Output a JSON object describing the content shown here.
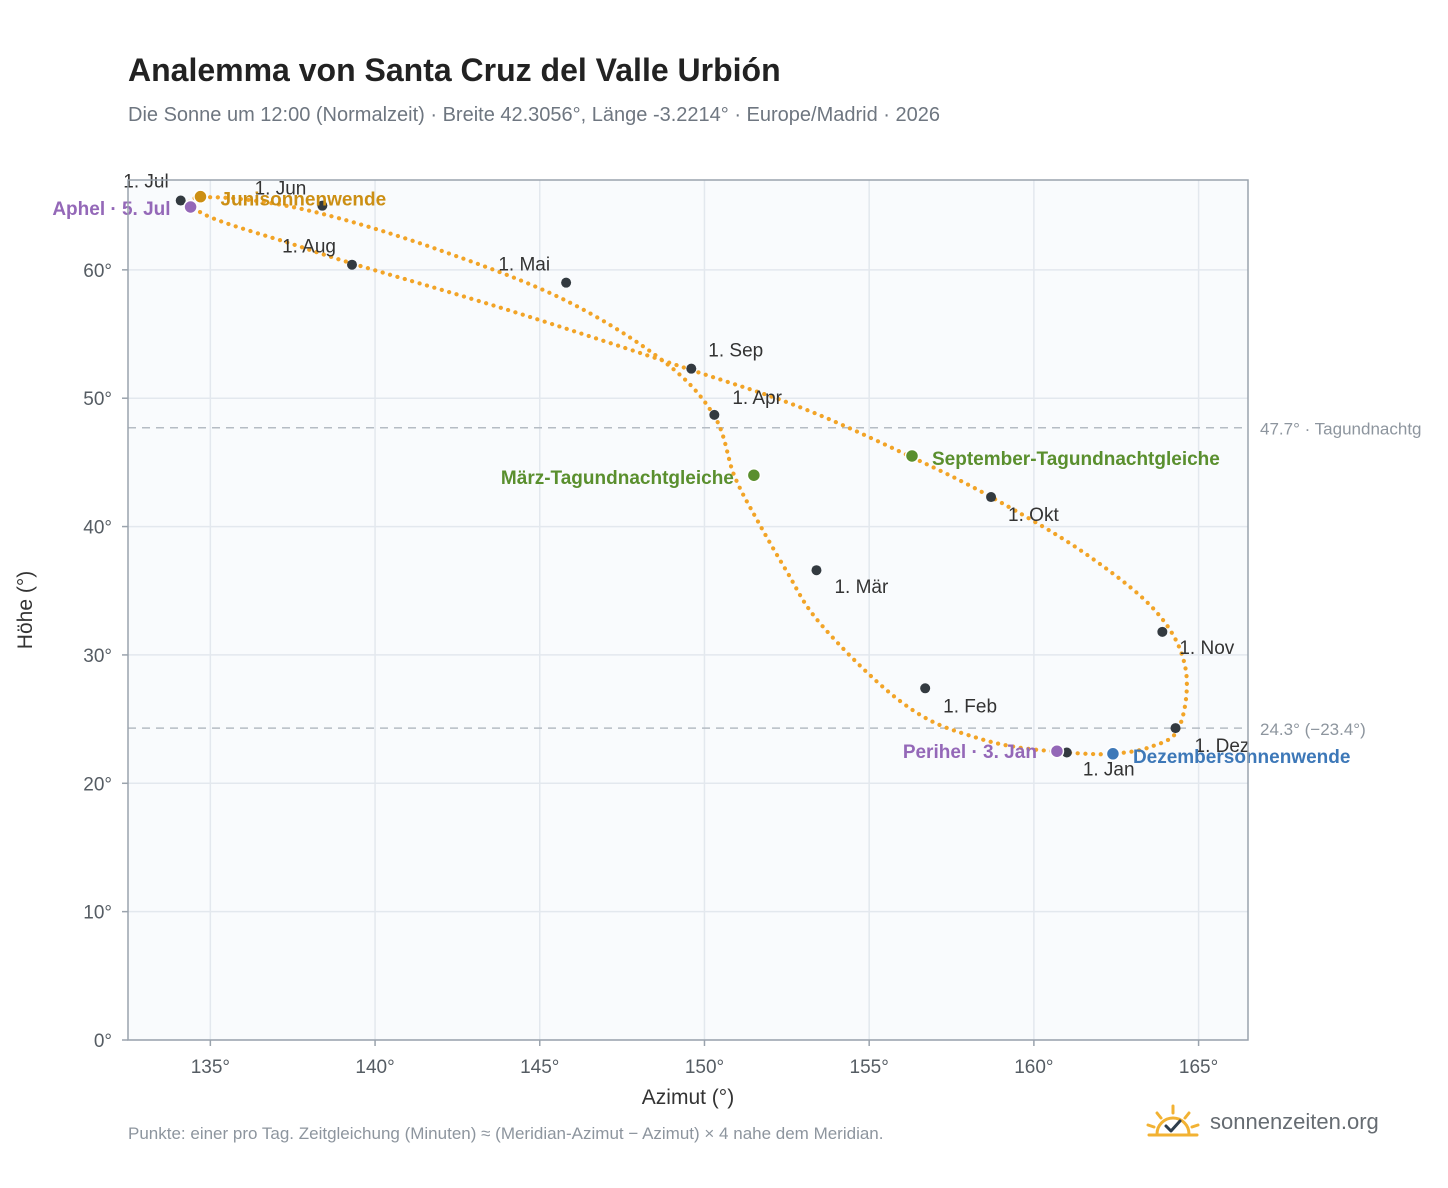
{
  "title": "Analemma von Santa Cruz del Valle Urbión",
  "subtitle": "Die Sonne um 12:00 (Normalzeit) · Breite 42.3056°, Länge -3.2214° · Europe/Madrid · 2026",
  "footnote": "Punkte: einer pro Tag. Zeitgleichung (Minuten) ≈ (Meridian-Azimut − Azimut) × 4 nahe dem Meridian.",
  "brand": {
    "name": "sonnenzeiten.org",
    "icon": "sun-check-icon"
  },
  "colors": {
    "curve": "#f2a427",
    "month_marker": "#333a40",
    "solstice_june": "#cc8f14",
    "solstice_december": "#3d78b8",
    "equinox": "#5a8f2e",
    "apsis": "#9468b8",
    "plot_background": "#f9fbfd",
    "grid": "#e3e8ee",
    "reference_line": "#b5bcc4"
  },
  "chart_data": {
    "type": "scatter",
    "title": "Analemma von Santa Cruz del Valle Urbión",
    "xlabel": "Azimut (°)",
    "ylabel": "Höhe (°)",
    "xlim": [
      132.5,
      166.5
    ],
    "ylim": [
      0,
      67
    ],
    "x_ticks": [
      135,
      140,
      145,
      150,
      155,
      160,
      165
    ],
    "x_tick_labels": [
      "135°",
      "140°",
      "145°",
      "150°",
      "155°",
      "160°",
      "165°"
    ],
    "y_ticks": [
      0,
      10,
      20,
      30,
      40,
      50,
      60
    ],
    "y_tick_labels": [
      "0°",
      "10°",
      "20°",
      "30°",
      "40°",
      "50°",
      "60°"
    ],
    "grid": true,
    "series": [
      {
        "points": [
          [
            161.0,
            22.4
          ],
          [
            159.5,
            22.8
          ],
          [
            158.2,
            23.6
          ],
          [
            156.7,
            25.1
          ],
          [
            155.2,
            28.0
          ],
          [
            153.4,
            32.8
          ],
          [
            152.5,
            36.5
          ],
          [
            151.6,
            40.5
          ],
          [
            150.9,
            44.0
          ],
          [
            150.3,
            48.6
          ],
          [
            148.8,
            52.8
          ],
          [
            145.8,
            57.6
          ],
          [
            142.0,
            61.5
          ],
          [
            138.5,
            64.3
          ],
          [
            136.0,
            65.5
          ],
          [
            134.4,
            65.5
          ],
          [
            135.0,
            64.1
          ],
          [
            137.5,
            62.0
          ],
          [
            139.3,
            60.5
          ],
          [
            144.0,
            56.9
          ],
          [
            149.6,
            52.2
          ],
          [
            153.0,
            49.2
          ],
          [
            156.3,
            45.4
          ],
          [
            158.7,
            42.3
          ],
          [
            161.5,
            38.0
          ],
          [
            163.7,
            33.4
          ],
          [
            164.6,
            29.0
          ],
          [
            164.4,
            24.3
          ],
          [
            163.5,
            22.8
          ],
          [
            162.4,
            22.3
          ],
          [
            161.6,
            22.3
          ],
          [
            161.0,
            22.4
          ]
        ]
      }
    ],
    "month_markers": [
      {
        "label": "1. Jan",
        "x": 161.0,
        "y": 22.4
      },
      {
        "label": "1. Feb",
        "x": 156.7,
        "y": 27.4
      },
      {
        "label": "1. Mär",
        "x": 153.4,
        "y": 36.6
      },
      {
        "label": "1. Apr",
        "x": 150.3,
        "y": 48.7
      },
      {
        "label": "1. Mai",
        "x": 145.8,
        "y": 59.0
      },
      {
        "label": "1. Jun",
        "x": 138.4,
        "y": 65.0
      },
      {
        "label": "1. Jul",
        "x": 134.1,
        "y": 65.4
      },
      {
        "label": "1. Aug",
        "x": 139.3,
        "y": 60.4
      },
      {
        "label": "1. Sep",
        "x": 149.6,
        "y": 52.3
      },
      {
        "label": "1. Okt",
        "x": 158.7,
        "y": 42.3
      },
      {
        "label": "1. Nov",
        "x": 163.9,
        "y": 31.8
      },
      {
        "label": "1. Dez",
        "x": 164.3,
        "y": 24.3
      }
    ],
    "events": [
      {
        "label": "Junisonnenwende",
        "x": 134.7,
        "y": 65.7,
        "kind": "solstice_june"
      },
      {
        "label": "Aphel · 5. Jul",
        "x": 134.4,
        "y": 64.9,
        "kind": "apsis"
      },
      {
        "label": "März-Tagundnachtgleiche",
        "x": 151.5,
        "y": 44.0,
        "kind": "equinox"
      },
      {
        "label": "September-Tagundnachtgleiche",
        "x": 156.3,
        "y": 45.5,
        "kind": "equinox"
      },
      {
        "label": "Perihel · 3. Jan",
        "x": 160.7,
        "y": 22.5,
        "kind": "apsis"
      },
      {
        "label": "Dezembersonnenwende",
        "x": 162.4,
        "y": 22.3,
        "kind": "solstice_december"
      }
    ],
    "reference_lines": [
      {
        "y": 47.7,
        "label": "47.7° · Tagundnachtg"
      },
      {
        "y": 24.3,
        "label": "24.3° (−23.4°)"
      }
    ]
  }
}
